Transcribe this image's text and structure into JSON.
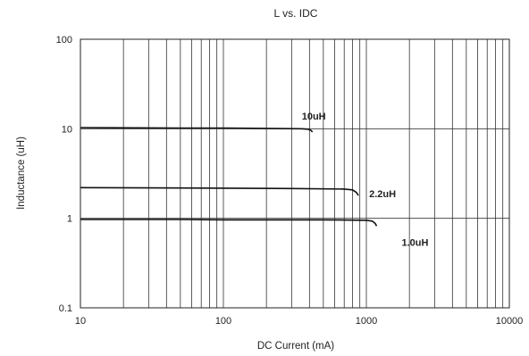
{
  "chart_data": {
    "type": "line",
    "title": "L vs. IDC",
    "xlabel": "DC Current (mA)",
    "ylabel": "Inductance (uH)",
    "xscale": "log",
    "yscale": "log",
    "xlim": [
      10,
      10000
    ],
    "ylim": [
      0.1,
      100
    ],
    "x_ticks": [
      "10",
      "100",
      "1000",
      "10000"
    ],
    "y_ticks": [
      "0.1",
      "1",
      "10",
      "100"
    ],
    "grid": true,
    "line_color": "#111111",
    "series": [
      {
        "name": "10uH",
        "x": [
          10,
          50,
          100,
          200,
          350,
          390,
          410,
          420
        ],
        "y": [
          10.3,
          10.2,
          10.2,
          10.1,
          10.0,
          9.9,
          9.6,
          9.2
        ]
      },
      {
        "name": "2.2uH",
        "x": [
          10,
          50,
          100,
          300,
          700,
          800,
          850,
          880
        ],
        "y": [
          2.2,
          2.18,
          2.17,
          2.15,
          2.12,
          2.08,
          1.95,
          1.8
        ]
      },
      {
        "name": "1.0uH",
        "x": [
          10,
          50,
          100,
          500,
          1000,
          1100,
          1150,
          1180
        ],
        "y": [
          0.97,
          0.97,
          0.96,
          0.96,
          0.95,
          0.93,
          0.88,
          0.82
        ]
      }
    ]
  }
}
